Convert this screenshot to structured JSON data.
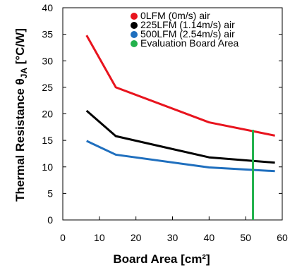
{
  "chart_data": {
    "type": "line",
    "title": "",
    "xlabel": "Board Area [cm²]",
    "ylabel": {
      "prefix": "Thermal Resistance θ",
      "sub": "JA",
      "suffix": " [°C/W]"
    },
    "xlim": [
      0,
      60
    ],
    "ylim": [
      0,
      40
    ],
    "xticks": [
      0,
      10,
      20,
      30,
      40,
      50,
      60
    ],
    "yticks": [
      0,
      5,
      10,
      15,
      20,
      25,
      30,
      35,
      40
    ],
    "grid": false,
    "legend_position": "top-right",
    "series": [
      {
        "name": "0LFM (0m/s) air",
        "color": "#e8141e",
        "x": [
          6.5,
          14.5,
          40,
          58
        ],
        "y": [
          34.8,
          25.0,
          18.4,
          15.9
        ]
      },
      {
        "name": "225LFM (1.14m/s) air",
        "color": "#000000",
        "x": [
          6.5,
          14.5,
          40,
          58
        ],
        "y": [
          20.6,
          15.8,
          11.8,
          10.8
        ]
      },
      {
        "name": "500LFM (2.54m/s) air",
        "color": "#1f6fbe",
        "x": [
          6.5,
          14.5,
          40,
          58
        ],
        "y": [
          14.9,
          12.3,
          9.9,
          9.2
        ]
      }
    ],
    "evaluation_board": {
      "name": "Evaluation Board Area",
      "color": "#22b14c",
      "x": 52,
      "y_from": 0,
      "y_to": 17
    }
  }
}
